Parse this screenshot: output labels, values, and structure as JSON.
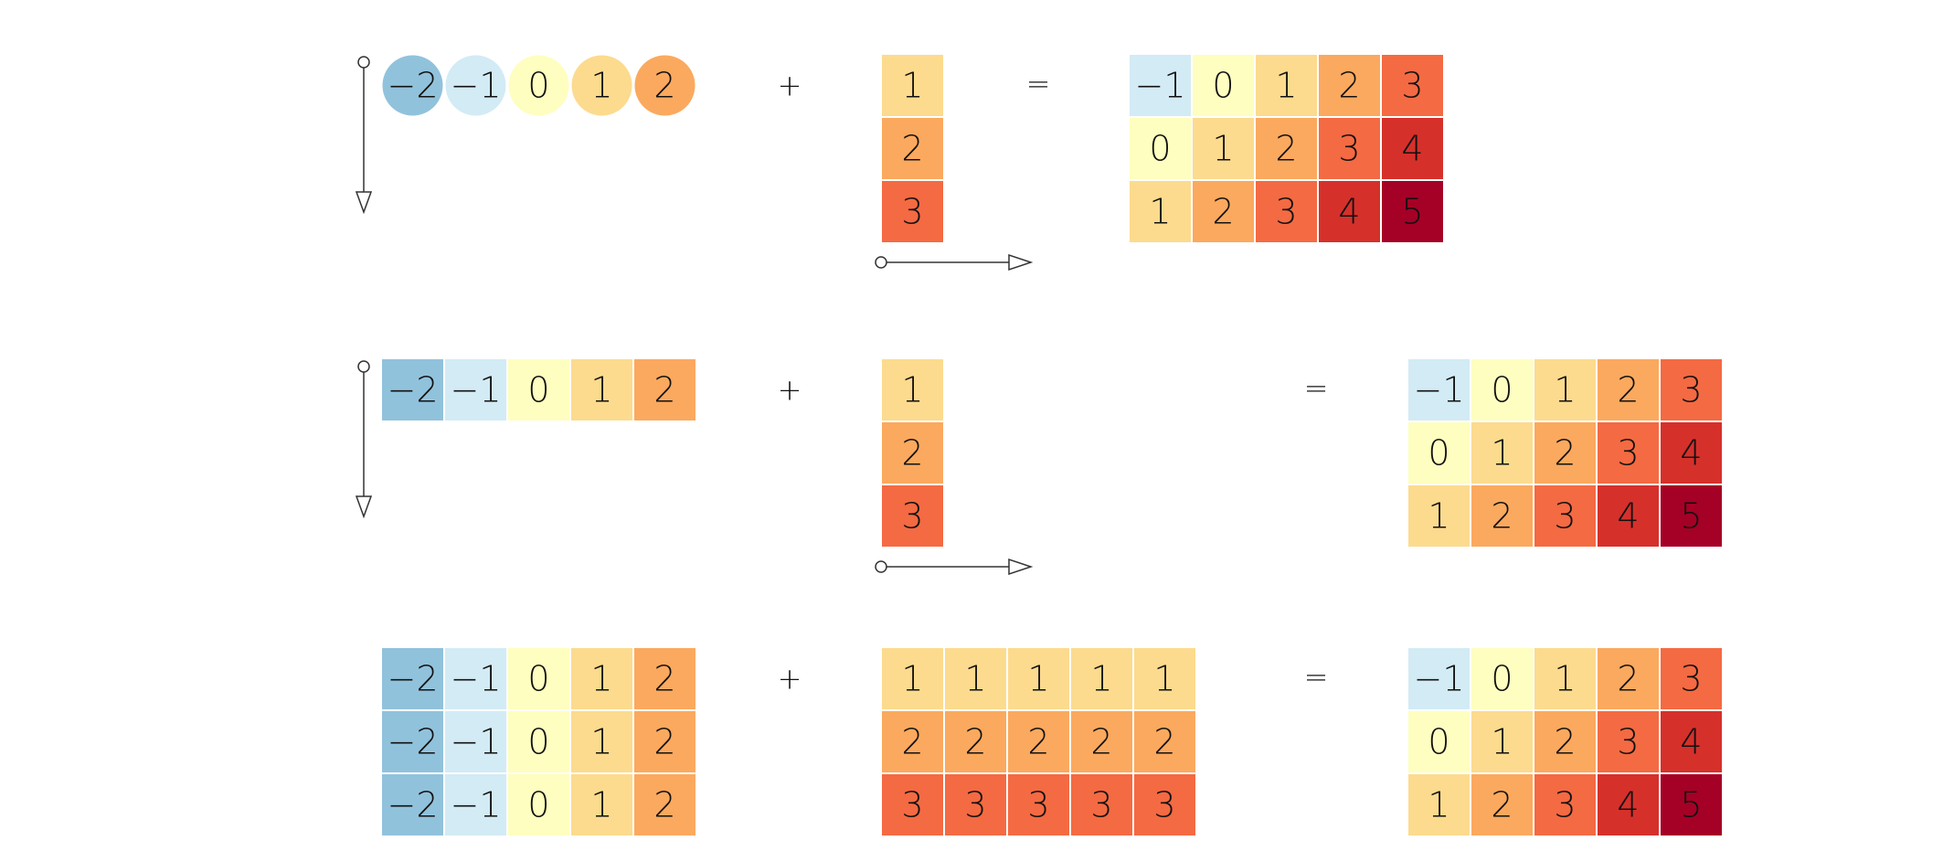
{
  "colors": {
    "-2": "#91c2dc",
    "-1": "#d3ebf5",
    "0": "#fefec0",
    "1": "#fcdb8e",
    "2": "#fba95e",
    "3": "#f46a42",
    "4": "#d6302b",
    "5": "#a50026"
  },
  "operators": {
    "plus": "+",
    "equals": "="
  },
  "diagram": {
    "rows": [
      {
        "left": {
          "kind": "circles",
          "values": [
            [
              -2,
              -1,
              0,
              1,
              2
            ]
          ],
          "arrow": "down"
        },
        "middle": {
          "kind": "column",
          "values": [
            [
              1
            ],
            [
              2
            ],
            [
              3
            ]
          ],
          "arrow": "right"
        },
        "result": {
          "values": [
            [
              -1,
              0,
              1,
              2,
              3
            ],
            [
              0,
              1,
              2,
              3,
              4
            ],
            [
              1,
              2,
              3,
              4,
              5
            ]
          ]
        }
      },
      {
        "left": {
          "kind": "grid",
          "values": [
            [
              -2,
              -1,
              0,
              1,
              2
            ]
          ],
          "arrow": "down"
        },
        "middle": {
          "kind": "column",
          "values": [
            [
              1
            ],
            [
              2
            ],
            [
              3
            ]
          ],
          "arrow": "right"
        },
        "result": {
          "values": [
            [
              -1,
              0,
              1,
              2,
              3
            ],
            [
              0,
              1,
              2,
              3,
              4
            ],
            [
              1,
              2,
              3,
              4,
              5
            ]
          ]
        }
      },
      {
        "left": {
          "kind": "grid",
          "values": [
            [
              -2,
              -1,
              0,
              1,
              2
            ],
            [
              -2,
              -1,
              0,
              1,
              2
            ],
            [
              -2,
              -1,
              0,
              1,
              2
            ]
          ]
        },
        "middle": {
          "kind": "grid",
          "values": [
            [
              1,
              1,
              1,
              1,
              1
            ],
            [
              2,
              2,
              2,
              2,
              2
            ],
            [
              3,
              3,
              3,
              3,
              3
            ]
          ]
        },
        "result": {
          "values": [
            [
              -1,
              0,
              1,
              2,
              3
            ],
            [
              0,
              1,
              2,
              3,
              4
            ],
            [
              1,
              2,
              3,
              4,
              5
            ]
          ]
        }
      }
    ]
  }
}
